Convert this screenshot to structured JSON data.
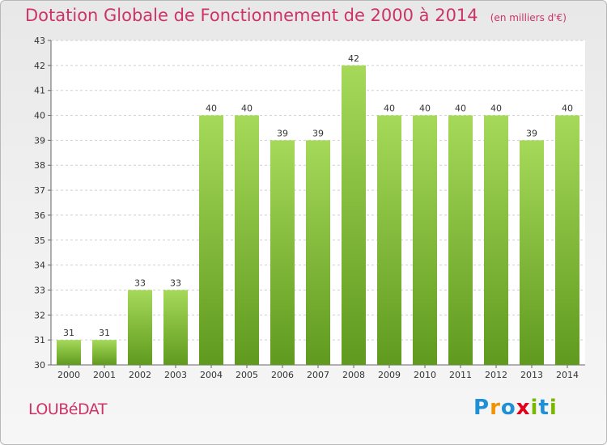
{
  "title": "Dotation Globale de Fonctionnement de 2000 à 2014",
  "subtitle": "(en milliers d'€)",
  "commune": "LOUBéDAT",
  "logo": {
    "letters": [
      "P",
      "r",
      "o",
      "x",
      "i",
      "t",
      "i"
    ]
  },
  "colors": {
    "bar": "#8cc63f",
    "bar_light": "#a6d95a",
    "bar_dark": "#5f9a1e",
    "title": "#cc3366",
    "logo": [
      "#1f8fd6",
      "#f39200",
      "#1f8fd6",
      "#e2001a",
      "#7ab800",
      "#1f8fd6",
      "#7ab800"
    ]
  },
  "chart_data": {
    "type": "bar",
    "categories": [
      "2000",
      "2001",
      "2002",
      "2003",
      "2004",
      "2005",
      "2006",
      "2007",
      "2008",
      "2009",
      "2010",
      "2011",
      "2012",
      "2013",
      "2014"
    ],
    "values": [
      31,
      31,
      33,
      33,
      40,
      40,
      39,
      39,
      42,
      40,
      40,
      40,
      40,
      39,
      40
    ],
    "data_labels": [
      "31",
      "31",
      "33",
      "33",
      "40",
      "40",
      "39",
      "39",
      "42",
      "40",
      "40",
      "40",
      "40",
      "39",
      "40"
    ],
    "yticks": [
      "30",
      "31",
      "32",
      "33",
      "34",
      "35",
      "36",
      "37",
      "38",
      "39",
      "40",
      "41",
      "42",
      "43"
    ],
    "ylim": [
      30,
      43
    ],
    "grid": true,
    "xlabel": "",
    "ylabel": ""
  }
}
